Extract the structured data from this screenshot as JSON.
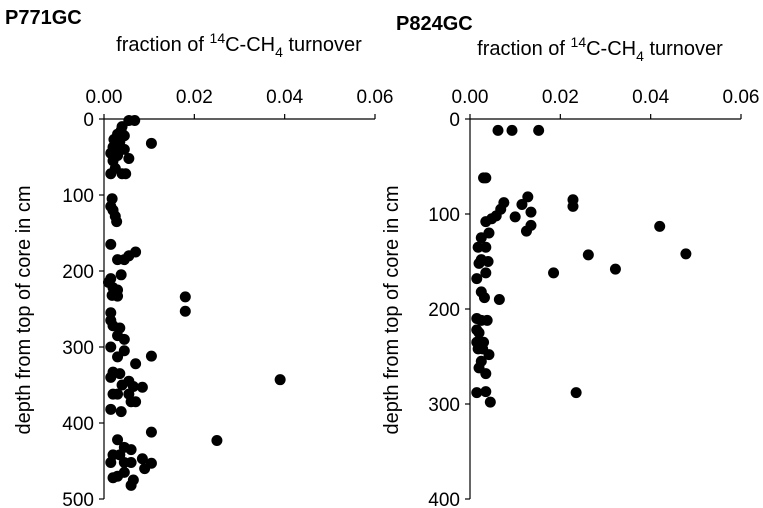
{
  "chart_data": [
    {
      "type": "scatter",
      "title": "P771GC",
      "xlabel": {
        "pre": "fraction of ",
        "sup": "14",
        "mid": "C-CH",
        "sub": "4",
        "post": " turnover"
      },
      "ylabel": "depth from top of core in cm",
      "xlim": [
        0,
        0.06
      ],
      "ylim": [
        0,
        500
      ],
      "y_inverted": true,
      "x_axis_position": "top",
      "x_ticks": [
        "0.00",
        "0.02",
        "0.04",
        "0.06"
      ],
      "y_ticks": [
        "0",
        "100",
        "200",
        "300",
        "400",
        "500"
      ],
      "grid": false,
      "points": [
        [
          0.0055,
          2
        ],
        [
          0.0068,
          2
        ],
        [
          0.004,
          10
        ],
        [
          0.0038,
          15
        ],
        [
          0.003,
          20
        ],
        [
          0.0045,
          22
        ],
        [
          0.0022,
          27
        ],
        [
          0.0035,
          30
        ],
        [
          0.0105,
          32
        ],
        [
          0.002,
          37
        ],
        [
          0.0032,
          40
        ],
        [
          0.0045,
          40
        ],
        [
          0.0015,
          45
        ],
        [
          0.003,
          48
        ],
        [
          0.0055,
          52
        ],
        [
          0.002,
          55
        ],
        [
          0.0025,
          65
        ],
        [
          0.0015,
          72
        ],
        [
          0.004,
          72
        ],
        [
          0.0048,
          72
        ],
        [
          0.0018,
          105
        ],
        [
          0.0015,
          115
        ],
        [
          0.002,
          120
        ],
        [
          0.0025,
          128
        ],
        [
          0.0028,
          135
        ],
        [
          0.0015,
          165
        ],
        [
          0.007,
          175
        ],
        [
          0.0055,
          180
        ],
        [
          0.003,
          185
        ],
        [
          0.0045,
          185
        ],
        [
          0.0038,
          205
        ],
        [
          0.0015,
          210
        ],
        [
          0.001,
          215
        ],
        [
          0.002,
          222
        ],
        [
          0.003,
          225
        ],
        [
          0.0018,
          232
        ],
        [
          0.003,
          233
        ],
        [
          0.018,
          234
        ],
        [
          0.018,
          253
        ],
        [
          0.0015,
          255
        ],
        [
          0.0015,
          265
        ],
        [
          0.002,
          272
        ],
        [
          0.0035,
          275
        ],
        [
          0.003,
          285
        ],
        [
          0.0045,
          290
        ],
        [
          0.0015,
          300
        ],
        [
          0.0045,
          305
        ],
        [
          0.0105,
          312
        ],
        [
          0.003,
          313
        ],
        [
          0.007,
          322
        ],
        [
          0.002,
          333
        ],
        [
          0.0035,
          335
        ],
        [
          0.0015,
          340
        ],
        [
          0.039,
          343
        ],
        [
          0.0055,
          345
        ],
        [
          0.004,
          350
        ],
        [
          0.0065,
          352
        ],
        [
          0.0085,
          353
        ],
        [
          0.002,
          362
        ],
        [
          0.003,
          362
        ],
        [
          0.0055,
          362
        ],
        [
          0.006,
          372
        ],
        [
          0.007,
          372
        ],
        [
          0.0015,
          382
        ],
        [
          0.0038,
          385
        ],
        [
          0.0105,
          412
        ],
        [
          0.003,
          422
        ],
        [
          0.025,
          423
        ],
        [
          0.0045,
          432
        ],
        [
          0.006,
          435
        ],
        [
          0.002,
          442
        ],
        [
          0.0035,
          442
        ],
        [
          0.0085,
          447
        ],
        [
          0.0015,
          452
        ],
        [
          0.0045,
          452
        ],
        [
          0.006,
          452
        ],
        [
          0.0105,
          453
        ],
        [
          0.009,
          460
        ],
        [
          0.0045,
          465
        ],
        [
          0.003,
          470
        ],
        [
          0.002,
          472
        ],
        [
          0.0065,
          475
        ],
        [
          0.006,
          482
        ]
      ]
    },
    {
      "type": "scatter",
      "title": "P824GC",
      "xlabel": {
        "pre": "fraction of ",
        "sup": "14",
        "mid": "C-CH",
        "sub": "4",
        "post": " turnover"
      },
      "ylabel": "depth from top of core in cm",
      "xlim": [
        0,
        0.06
      ],
      "ylim": [
        0,
        400
      ],
      "y_inverted": true,
      "x_axis_position": "top",
      "x_ticks": [
        "0.00",
        "0.02",
        "0.04",
        "0.06"
      ],
      "y_ticks": [
        "0",
        "100",
        "200",
        "300",
        "400"
      ],
      "grid": false,
      "points": [
        [
          0.0062,
          12
        ],
        [
          0.0093,
          12
        ],
        [
          0.0152,
          12
        ],
        [
          0.003,
          62
        ],
        [
          0.0035,
          62
        ],
        [
          0.0128,
          82
        ],
        [
          0.0228,
          85
        ],
        [
          0.0075,
          88
        ],
        [
          0.0115,
          90
        ],
        [
          0.0228,
          92
        ],
        [
          0.0068,
          95
        ],
        [
          0.0135,
          98
        ],
        [
          0.0058,
          102
        ],
        [
          0.01,
          103
        ],
        [
          0.0048,
          105
        ],
        [
          0.0035,
          108
        ],
        [
          0.0135,
          112
        ],
        [
          0.042,
          113
        ],
        [
          0.0125,
          118
        ],
        [
          0.0042,
          120
        ],
        [
          0.0025,
          125
        ],
        [
          0.0018,
          135
        ],
        [
          0.0035,
          135
        ],
        [
          0.0262,
          143
        ],
        [
          0.0478,
          142
        ],
        [
          0.0025,
          148
        ],
        [
          0.002,
          152
        ],
        [
          0.004,
          150
        ],
        [
          0.0322,
          158
        ],
        [
          0.0035,
          162
        ],
        [
          0.0185,
          162
        ],
        [
          0.0015,
          168
        ],
        [
          0.0025,
          182
        ],
        [
          0.0032,
          188
        ],
        [
          0.0065,
          190
        ],
        [
          0.0015,
          210
        ],
        [
          0.0025,
          212
        ],
        [
          0.0038,
          212
        ],
        [
          0.0015,
          222
        ],
        [
          0.002,
          225
        ],
        [
          0.0015,
          235
        ],
        [
          0.003,
          235
        ],
        [
          0.0018,
          242
        ],
        [
          0.0028,
          242
        ],
        [
          0.0042,
          248
        ],
        [
          0.0025,
          255
        ],
        [
          0.002,
          262
        ],
        [
          0.0035,
          268
        ],
        [
          0.0015,
          288
        ],
        [
          0.0035,
          287
        ],
        [
          0.0235,
          288
        ],
        [
          0.0045,
          298
        ]
      ]
    }
  ]
}
